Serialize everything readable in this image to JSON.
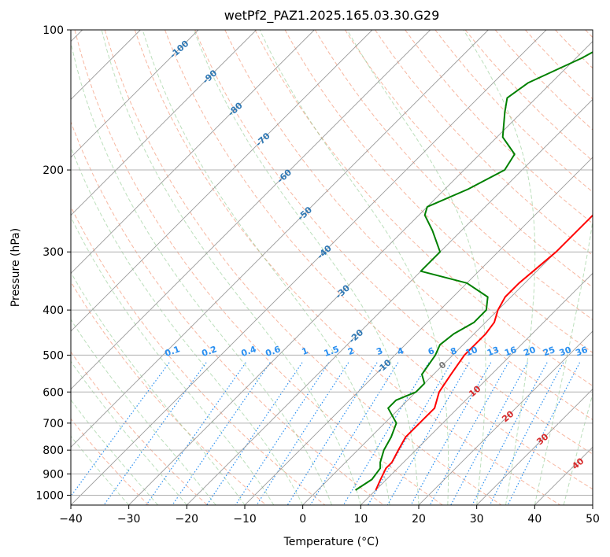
{
  "chart_data": {
    "type": "line",
    "title": "wetPf2_PAZ1.2025.165.03.30.G29",
    "xlabel": "Temperature (°C)",
    "ylabel": "Pressure (hPa)",
    "xlim": [
      -40,
      50
    ],
    "ylim": [
      1050,
      100
    ],
    "y_scale": "log",
    "grid": true,
    "x_ticks": [
      -40,
      -30,
      -20,
      -10,
      0,
      10,
      20,
      30,
      40,
      50
    ],
    "y_ticks": [
      100,
      200,
      300,
      400,
      500,
      600,
      700,
      800,
      900,
      1000
    ],
    "isotherm_labels": [
      "-100",
      "-90",
      "-80",
      "-70",
      "-60",
      "-50",
      "-40",
      "-30",
      "-20",
      "-10"
    ],
    "mixing_ratio_labels": [
      "0.1",
      "0.2",
      "0.4",
      "0.6",
      "1",
      "1.5",
      "2",
      "3",
      "4",
      "6",
      "8",
      "10",
      "13",
      "16",
      "20",
      "25",
      "30",
      "36"
    ],
    "wet_adiabat_labels": [
      "0",
      "10",
      "20",
      "30",
      "40"
    ],
    "series": [
      {
        "name": "",
        "color": "#ff0000",
        "points": [
          [
            10.0,
            975
          ],
          [
            9.0,
            925
          ],
          [
            8.0,
            875
          ],
          [
            8.0,
            850
          ],
          [
            7.0,
            800
          ],
          [
            6.0,
            750
          ],
          [
            6.0,
            700
          ],
          [
            6.0,
            650
          ],
          [
            4.0,
            600
          ],
          [
            3.0,
            550
          ],
          [
            2.0,
            500
          ],
          [
            2.0,
            450
          ],
          [
            1.5,
            425
          ],
          [
            0.0,
            400
          ],
          [
            -1.0,
            375
          ],
          [
            -1.0,
            350
          ],
          [
            0.0,
            300
          ],
          [
            0.0,
            250
          ],
          [
            0.0,
            225
          ],
          [
            2.0,
            200
          ],
          [
            7.0,
            180
          ],
          [
            11.0,
            170
          ],
          [
            15.0,
            160
          ],
          [
            17.0,
            150
          ],
          [
            20.0,
            130
          ],
          [
            22.0,
            115
          ],
          [
            25.0,
            100
          ]
        ]
      },
      {
        "name": "",
        "color": "#008000",
        "points": [
          [
            6.5,
            975
          ],
          [
            7.5,
            925
          ],
          [
            7.0,
            875
          ],
          [
            6.0,
            850
          ],
          [
            4.5,
            800
          ],
          [
            3.5,
            750
          ],
          [
            2.0,
            700
          ],
          [
            -2.0,
            650
          ],
          [
            -2.0,
            625
          ],
          [
            0.0,
            600
          ],
          [
            0.0,
            575
          ],
          [
            -2.0,
            550
          ],
          [
            -3.0,
            500
          ],
          [
            -4.0,
            475
          ],
          [
            -3.5,
            450
          ],
          [
            -2.0,
            425
          ],
          [
            -2.0,
            400
          ],
          [
            -4.0,
            375
          ],
          [
            -10.0,
            350
          ],
          [
            -20.0,
            330
          ],
          [
            -20.0,
            300
          ],
          [
            -25.0,
            270
          ],
          [
            -29.0,
            250
          ],
          [
            -30.0,
            240
          ],
          [
            -26.0,
            220
          ],
          [
            -23.0,
            200
          ],
          [
            -24.0,
            185
          ],
          [
            -29.0,
            170
          ],
          [
            -33.0,
            150
          ],
          [
            -35.0,
            140
          ],
          [
            -34.0,
            130
          ],
          [
            -29.0,
            115
          ],
          [
            -25.0,
            100
          ]
        ]
      }
    ]
  }
}
